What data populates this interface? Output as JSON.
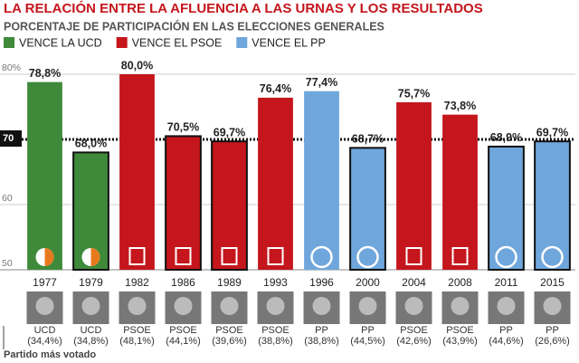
{
  "chart_data": {
    "type": "bar",
    "title": "LA RELACIÓN ENTRE LA AFLUENCIA A LAS URNAS Y LOS RESULTADOS",
    "subtitle": "PORCENTAJE DE PARTICIPACIÓN EN LAS ELECCIONES GENERALES",
    "legend": [
      {
        "name": "VENCE LA UCD",
        "color": "#3f8a3a"
      },
      {
        "name": "VENCE EL PSOE",
        "color": "#c4161c"
      },
      {
        "name": "VENCE EL PP",
        "color": "#6fa6dc"
      }
    ],
    "categories": [
      "1977",
      "1979",
      "1982",
      "1986",
      "1989",
      "1993",
      "1996",
      "2000",
      "2004",
      "2008",
      "2011",
      "2015"
    ],
    "values": [
      78.8,
      68.0,
      80.0,
      70.5,
      69.7,
      76.4,
      77.4,
      68.7,
      75.7,
      73.8,
      68.9,
      69.7
    ],
    "value_labels": [
      "78,8%",
      "68,0%",
      "80,0%",
      "70,5%",
      "69,7%",
      "76,4%",
      "77,4%",
      "68,7%",
      "75,7%",
      "73,8%",
      "68,9%",
      "69,7%"
    ],
    "colors": [
      "#3f8a3a",
      "#3f8a3a",
      "#c4161c",
      "#c4161c",
      "#c4161c",
      "#c4161c",
      "#6fa6dc",
      "#6fa6dc",
      "#c4161c",
      "#c4161c",
      "#6fa6dc",
      "#6fa6dc"
    ],
    "outlined": [
      false,
      true,
      false,
      true,
      true,
      false,
      false,
      true,
      false,
      false,
      true,
      true
    ],
    "party_labels": [
      "UCD (34,4%)",
      "UCD (34,8%)",
      "PSOE (48,1%)",
      "PSOE (44,1%)",
      "PSOE (39,6%)",
      "PSOE (38,8%)",
      "PP (38,8%)",
      "PP (44,5%)",
      "PSOE (42,6%)",
      "PSOE (43,9%)",
      "PP (44,6%)",
      "PP (26,6%)"
    ],
    "annotation": "Partido más votado",
    "ylim": [
      50,
      82
    ],
    "yticks": [
      50,
      60,
      70,
      {
        "value": 80,
        "label": "80%"
      }
    ],
    "highlight_tick": 70,
    "grid": true
  }
}
